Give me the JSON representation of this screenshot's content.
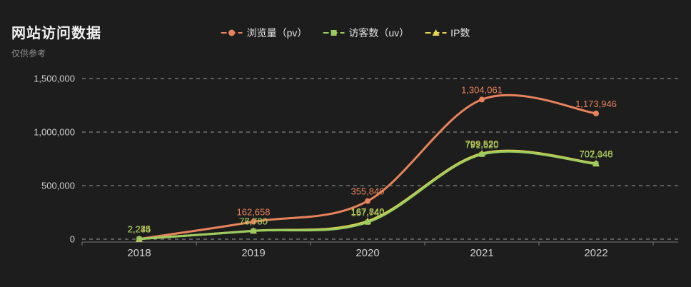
{
  "page": {
    "title": "网站访问数据",
    "subtitle": "仅供参考",
    "background_color": "#1d1d1d"
  },
  "legend": {
    "position": "top-center",
    "items": [
      {
        "id": "pv",
        "label": "浏览量（pv）",
        "color": "#e8835c",
        "marker": "circle"
      },
      {
        "id": "uv",
        "label": "访客数（uv）",
        "color": "#9ccc5f",
        "marker": "square"
      },
      {
        "id": "ip",
        "label": "IP数",
        "color": "#e6d455",
        "marker": "triangle"
      }
    ]
  },
  "chart_data": {
    "type": "line",
    "title": "网站访问数据",
    "subtitle": "仅供参考",
    "categories": [
      "2018",
      "2019",
      "2020",
      "2021",
      "2022"
    ],
    "series": [
      {
        "id": "pv",
        "name": "浏览量（pv）",
        "color": "#e8835c",
        "marker": "circle",
        "values": [
          2274,
          162658,
          355840,
          1304061,
          1173946
        ]
      },
      {
        "id": "uv",
        "name": "访客数（uv）",
        "color": "#9ccc5f",
        "marker": "square",
        "values": [
          2234,
          76780,
          157740,
          791620,
          702040
        ]
      },
      {
        "id": "ip",
        "name": "IP数",
        "color": "#e6d455",
        "marker": "triangle",
        "values": [
          2245,
          77730,
          167840,
          799520,
          707148
        ]
      }
    ],
    "ylim": [
      0,
      1500000
    ],
    "yticks": [
      0,
      500000,
      1000000,
      1500000
    ],
    "ytick_labels": [
      "0",
      "500,000",
      "1,000,000",
      "1,500,000"
    ],
    "grid": "dashed-horizontal",
    "smooth": true,
    "point_labels": true,
    "legend_position": "top",
    "axis_label_color": "#cfcfcf",
    "gridline_color": "#9a9a9a"
  }
}
